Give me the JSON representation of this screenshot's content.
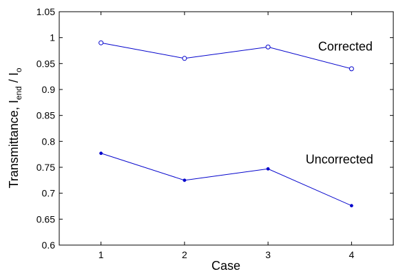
{
  "chart_data": {
    "type": "line",
    "xlabel": "Case",
    "ylabel": {
      "prefix": "Transmittance, I",
      "sub1": "end",
      "middle": " / I",
      "sub2": "o"
    },
    "xlim": [
      0.5,
      4.5
    ],
    "ylim": [
      0.6,
      1.05
    ],
    "x_ticks": [
      "1",
      "2",
      "3",
      "4"
    ],
    "y_ticks": [
      "0.6",
      "0.65",
      "0.7",
      "0.75",
      "0.8",
      "0.85",
      "0.9",
      "0.95",
      "1",
      "1.05"
    ],
    "x": [
      1,
      2,
      3,
      4
    ],
    "grid": false,
    "series": [
      {
        "marker": "open-circle",
        "color": "#0000cc",
        "values": [
          0.99,
          0.96,
          0.982,
          0.94
        ],
        "annotation": {
          "text": "Corrected",
          "x": 3.6,
          "y": 0.975
        }
      },
      {
        "marker": "filled-dot",
        "color": "#0000cc",
        "values": [
          0.777,
          0.725,
          0.747,
          0.676
        ],
        "annotation": {
          "text": "Uncorrected",
          "x": 3.45,
          "y": 0.757
        }
      }
    ]
  }
}
